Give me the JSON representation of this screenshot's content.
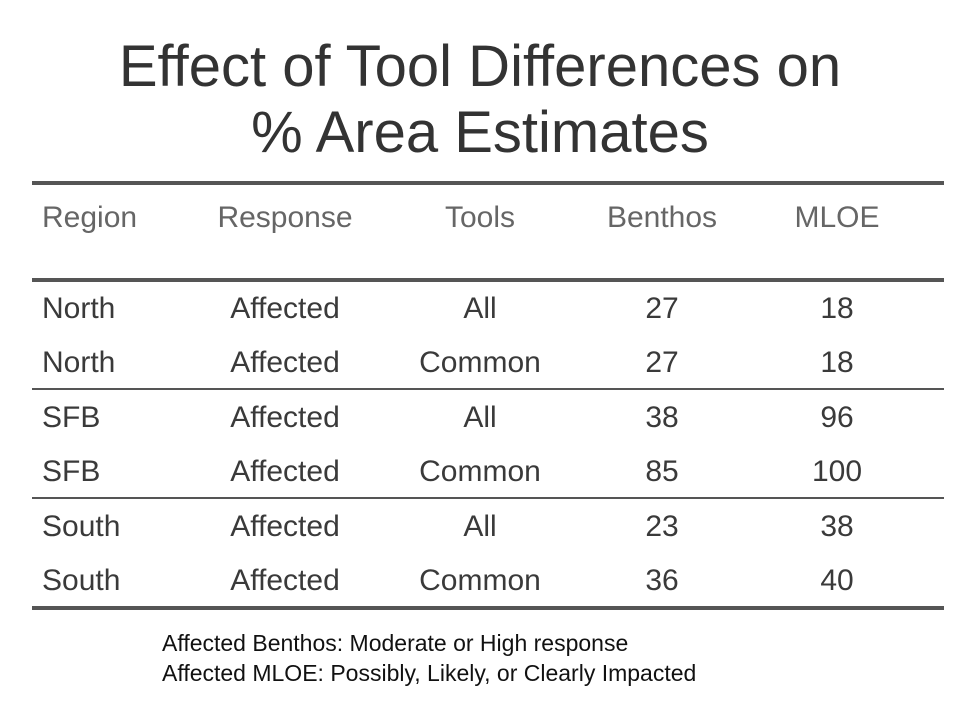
{
  "title": {
    "line1": "Effect of Tool Differences on",
    "line2": "% Area Estimates"
  },
  "table": {
    "headers": [
      "Region",
      "Response",
      "Tools",
      "Benthos",
      "MLOE"
    ],
    "rows": [
      [
        "North",
        "Affected",
        "All",
        "27",
        "18"
      ],
      [
        "North",
        "Affected",
        "Common",
        "27",
        "18"
      ],
      [
        "SFB",
        "Affected",
        "All",
        "38",
        "96"
      ],
      [
        "SFB",
        "Affected",
        "Common",
        "85",
        "100"
      ],
      [
        "South",
        "Affected",
        "All",
        "23",
        "38"
      ],
      [
        "South",
        "Affected",
        "Common",
        "36",
        "40"
      ]
    ]
  },
  "notes": [
    "Affected Benthos: Moderate or High response",
    "Affected MLOE: Possibly, Likely, or Clearly Impacted"
  ],
  "colors": {
    "text": "#3a3a3a",
    "header_text": "#666666",
    "rule": "#555555"
  }
}
